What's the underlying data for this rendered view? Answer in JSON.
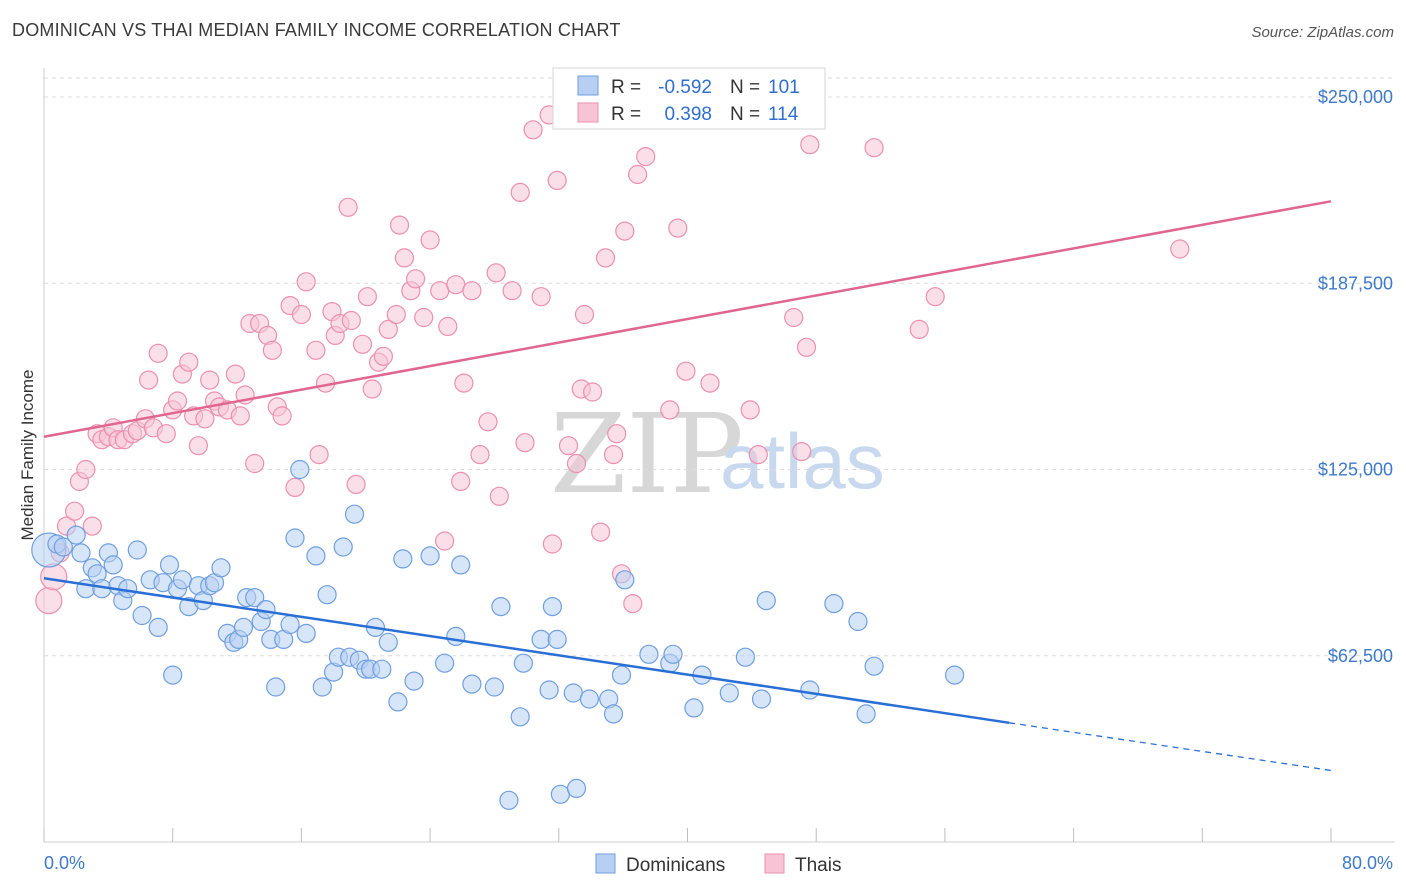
{
  "title": "DOMINICAN VS THAI MEDIAN FAMILY INCOME CORRELATION CHART",
  "source": "Source: ZipAtlas.com",
  "watermark": {
    "zip": "ZIP",
    "atlas": "atlas"
  },
  "colors": {
    "blue": "#6f9fe0",
    "blue_fill": "#b7cff2",
    "pink": "#ec8fb0",
    "pink_fill": "#f6c4d5",
    "blue_line": "#2a6fd6",
    "pink_line": "#e0668f",
    "axis_text": "#3d7ac9"
  },
  "legend": {
    "r_label": "R =",
    "n_label": "N =",
    "rows": [
      {
        "series": "Dominicans",
        "r": "-0.592",
        "n": "101"
      },
      {
        "series": "Thais",
        "r": "0.398",
        "n": "114"
      }
    ]
  },
  "chart_data": {
    "type": "scatter",
    "title": "DOMINICAN VS THAI MEDIAN FAMILY INCOME CORRELATION CHART",
    "xlabel": "",
    "ylabel": "Median Family Income",
    "xlim": [
      0,
      80
    ],
    "ylim": [
      0,
      262500
    ],
    "x_tick_labels": [
      "0.0%",
      "80.0%"
    ],
    "y_ticks": [
      62500,
      125000,
      187500,
      250000
    ],
    "y_tick_labels": [
      "$62,500",
      "$125,000",
      "$187,500",
      "$250,000"
    ],
    "grid": true,
    "legend_position": "top-center",
    "series": [
      {
        "name": "Dominicans",
        "trend": {
          "x0": 0,
          "y0": 88500,
          "x1": 60,
          "y1": 40000,
          "dash_to_x": 80,
          "dash_to_y": 24000
        },
        "points": [
          [
            0.3,
            98000,
            3
          ],
          [
            0.8,
            100000,
            1
          ],
          [
            1.2,
            99000,
            1
          ],
          [
            2,
            103000,
            1
          ],
          [
            2.3,
            97000,
            1
          ],
          [
            2.6,
            85000,
            1
          ],
          [
            3,
            92000,
            1
          ],
          [
            3.3,
            90000,
            1
          ],
          [
            3.6,
            85000,
            1
          ],
          [
            4,
            97000,
            1
          ],
          [
            4.3,
            93000,
            1
          ],
          [
            4.6,
            86000,
            1
          ],
          [
            4.9,
            81000,
            1
          ],
          [
            5.2,
            85000,
            1
          ],
          [
            5.8,
            98000,
            1
          ],
          [
            6.1,
            76000,
            1
          ],
          [
            6.6,
            88000,
            1
          ],
          [
            7.1,
            72000,
            1
          ],
          [
            7.4,
            87000,
            1
          ],
          [
            7.8,
            93000,
            1
          ],
          [
            8,
            56000,
            1
          ],
          [
            8.3,
            85000,
            1
          ],
          [
            8.6,
            88000,
            1
          ],
          [
            9,
            79000,
            1
          ],
          [
            9.6,
            86000,
            1
          ],
          [
            9.9,
            81000,
            1
          ],
          [
            10.3,
            86000,
            1
          ],
          [
            10.6,
            87000,
            1
          ],
          [
            11,
            92000,
            1
          ],
          [
            11.4,
            70000,
            1
          ],
          [
            11.8,
            67000,
            1
          ],
          [
            12.1,
            68000,
            1
          ],
          [
            12.4,
            72000,
            1
          ],
          [
            12.6,
            82000,
            1
          ],
          [
            13.1,
            82000,
            1
          ],
          [
            13.5,
            74000,
            1
          ],
          [
            13.8,
            78000,
            1
          ],
          [
            14.1,
            68000,
            1
          ],
          [
            14.4,
            52000,
            1
          ],
          [
            14.9,
            68000,
            1
          ],
          [
            15.3,
            73000,
            1
          ],
          [
            15.6,
            102000,
            1
          ],
          [
            15.9,
            125000,
            1
          ],
          [
            16.3,
            70000,
            1
          ],
          [
            16.9,
            96000,
            1
          ],
          [
            17.3,
            52000,
            1
          ],
          [
            17.6,
            83000,
            1
          ],
          [
            18,
            57000,
            1
          ],
          [
            18.3,
            62000,
            1
          ],
          [
            18.6,
            99000,
            1
          ],
          [
            19,
            62000,
            1
          ],
          [
            19.3,
            110000,
            1
          ],
          [
            19.6,
            61000,
            1
          ],
          [
            20,
            58000,
            1
          ],
          [
            20.3,
            58000,
            1
          ],
          [
            20.6,
            72000,
            1
          ],
          [
            21,
            58000,
            1
          ],
          [
            21.4,
            67000,
            1
          ],
          [
            22,
            47000,
            1
          ],
          [
            22.3,
            95000,
            1
          ],
          [
            23,
            54000,
            1
          ],
          [
            24,
            96000,
            1
          ],
          [
            24.9,
            60000,
            1
          ],
          [
            25.6,
            69000,
            1
          ],
          [
            25.9,
            93000,
            1
          ],
          [
            26.6,
            53000,
            1
          ],
          [
            28,
            52000,
            1
          ],
          [
            28.4,
            79000,
            1
          ],
          [
            28.9,
            14000,
            1
          ],
          [
            29.6,
            42000,
            1
          ],
          [
            29.8,
            60000,
            1
          ],
          [
            30.9,
            68000,
            1
          ],
          [
            31.4,
            51000,
            1
          ],
          [
            31.6,
            79000,
            1
          ],
          [
            31.9,
            68000,
            1
          ],
          [
            32.9,
            50000,
            1
          ],
          [
            33.9,
            48000,
            1
          ],
          [
            35.1,
            48000,
            1
          ],
          [
            35.4,
            43000,
            1
          ],
          [
            35.9,
            56000,
            1
          ],
          [
            37.6,
            63000,
            1
          ],
          [
            38.9,
            60000,
            1
          ],
          [
            39.1,
            63000,
            1
          ],
          [
            40.4,
            45000,
            1
          ],
          [
            40.9,
            56000,
            1
          ],
          [
            42.6,
            50000,
            1
          ],
          [
            43.6,
            62000,
            1
          ],
          [
            44.6,
            48000,
            1
          ],
          [
            44.9,
            81000,
            1
          ],
          [
            47.6,
            51000,
            1
          ],
          [
            49.1,
            80000,
            1
          ],
          [
            50.6,
            74000,
            1
          ],
          [
            51.1,
            43000,
            1
          ],
          [
            51.6,
            59000,
            1
          ],
          [
            56.6,
            56000,
            1
          ],
          [
            32.1,
            16000,
            1
          ],
          [
            33.1,
            18000,
            1
          ],
          [
            36.1,
            88000,
            1
          ]
        ]
      },
      {
        "name": "Thais",
        "trend": {
          "x0": 0,
          "y0": 136000,
          "x1": 80,
          "y1": 215000
        },
        "points": [
          [
            0.3,
            81000,
            2
          ],
          [
            0.6,
            89000,
            2
          ],
          [
            1.0,
            97000,
            1
          ],
          [
            1.4,
            106000,
            1
          ],
          [
            1.9,
            111000,
            1
          ],
          [
            2.2,
            121000,
            1
          ],
          [
            2.6,
            125000,
            1
          ],
          [
            3.0,
            106000,
            1
          ],
          [
            3.3,
            137000,
            1
          ],
          [
            3.6,
            135000,
            1
          ],
          [
            4.0,
            136000,
            1
          ],
          [
            4.3,
            139000,
            1
          ],
          [
            4.6,
            135000,
            1
          ],
          [
            5.0,
            135000,
            1
          ],
          [
            5.5,
            137000,
            1
          ],
          [
            5.8,
            138000,
            1
          ],
          [
            6.3,
            142000,
            1
          ],
          [
            6.5,
            155000,
            1
          ],
          [
            6.8,
            139000,
            1
          ],
          [
            7.1,
            164000,
            1
          ],
          [
            7.6,
            137000,
            1
          ],
          [
            8.0,
            145000,
            1
          ],
          [
            8.3,
            148000,
            1
          ],
          [
            8.6,
            157000,
            1
          ],
          [
            9.0,
            161000,
            1
          ],
          [
            9.3,
            143000,
            1
          ],
          [
            9.6,
            133000,
            1
          ],
          [
            10,
            142000,
            1
          ],
          [
            10.3,
            155000,
            1
          ],
          [
            10.6,
            148000,
            1
          ],
          [
            10.9,
            146000,
            1
          ],
          [
            11.4,
            145000,
            1
          ],
          [
            11.9,
            157000,
            1
          ],
          [
            12.2,
            143000,
            1
          ],
          [
            12.5,
            150000,
            1
          ],
          [
            12.8,
            174000,
            1
          ],
          [
            13.1,
            127000,
            1
          ],
          [
            13.4,
            174000,
            1
          ],
          [
            13.9,
            170000,
            1
          ],
          [
            14.2,
            165000,
            1
          ],
          [
            14.5,
            146000,
            1
          ],
          [
            14.8,
            143000,
            1
          ],
          [
            15.3,
            180000,
            1
          ],
          [
            15.6,
            119000,
            1
          ],
          [
            16.0,
            177000,
            1
          ],
          [
            16.3,
            188000,
            1
          ],
          [
            16.9,
            165000,
            1
          ],
          [
            17.1,
            130000,
            1
          ],
          [
            17.5,
            154000,
            1
          ],
          [
            17.9,
            178000,
            1
          ],
          [
            18.1,
            170000,
            1
          ],
          [
            18.4,
            174000,
            1
          ],
          [
            18.9,
            213000,
            1
          ],
          [
            19.1,
            175000,
            1
          ],
          [
            19.4,
            120000,
            1
          ],
          [
            19.8,
            167000,
            1
          ],
          [
            20.1,
            183000,
            1
          ],
          [
            20.4,
            152000,
            1
          ],
          [
            20.8,
            161000,
            1
          ],
          [
            21.1,
            163000,
            1
          ],
          [
            21.4,
            172000,
            1
          ],
          [
            21.9,
            177000,
            1
          ],
          [
            22.1,
            207000,
            1
          ],
          [
            22.4,
            196000,
            1
          ],
          [
            22.8,
            185000,
            1
          ],
          [
            23.1,
            189000,
            1
          ],
          [
            23.6,
            176000,
            1
          ],
          [
            24.0,
            202000,
            1
          ],
          [
            24.6,
            185000,
            1
          ],
          [
            24.9,
            101000,
            1
          ],
          [
            25.1,
            173000,
            1
          ],
          [
            25.6,
            187000,
            1
          ],
          [
            25.9,
            121000,
            1
          ],
          [
            26.1,
            154000,
            1
          ],
          [
            26.6,
            185000,
            1
          ],
          [
            27.1,
            130000,
            1
          ],
          [
            27.6,
            141000,
            1
          ],
          [
            28.1,
            191000,
            1
          ],
          [
            28.3,
            116000,
            1
          ],
          [
            29.1,
            185000,
            1
          ],
          [
            29.6,
            218000,
            1
          ],
          [
            29.9,
            134000,
            1
          ],
          [
            30.4,
            239000,
            1
          ],
          [
            30.9,
            183000,
            1
          ],
          [
            31.4,
            244000,
            1
          ],
          [
            31.6,
            100000,
            1
          ],
          [
            31.9,
            222000,
            1
          ],
          [
            32.6,
            133000,
            1
          ],
          [
            33.1,
            127000,
            1
          ],
          [
            33.4,
            152000,
            1
          ],
          [
            33.6,
            177000,
            1
          ],
          [
            34.1,
            151000,
            1
          ],
          [
            34.6,
            104000,
            1
          ],
          [
            34.9,
            196000,
            1
          ],
          [
            35.4,
            130000,
            1
          ],
          [
            35.6,
            137000,
            1
          ],
          [
            35.9,
            90000,
            1
          ],
          [
            36.1,
            205000,
            1
          ],
          [
            36.6,
            80000,
            1
          ],
          [
            36.9,
            224000,
            1
          ],
          [
            37.4,
            230000,
            1
          ],
          [
            38.9,
            145000,
            1
          ],
          [
            39.4,
            206000,
            1
          ],
          [
            39.9,
            158000,
            1
          ],
          [
            41.4,
            154000,
            1
          ],
          [
            43.9,
            145000,
            1
          ],
          [
            44.4,
            130000,
            1
          ],
          [
            46.6,
            176000,
            1
          ],
          [
            47.1,
            131000,
            1
          ],
          [
            47.4,
            166000,
            1
          ],
          [
            47.6,
            234000,
            1
          ],
          [
            51.6,
            233000,
            1
          ],
          [
            54.4,
            172000,
            1
          ],
          [
            55.4,
            183000,
            1
          ],
          [
            70.6,
            199000,
            1
          ]
        ]
      }
    ]
  }
}
